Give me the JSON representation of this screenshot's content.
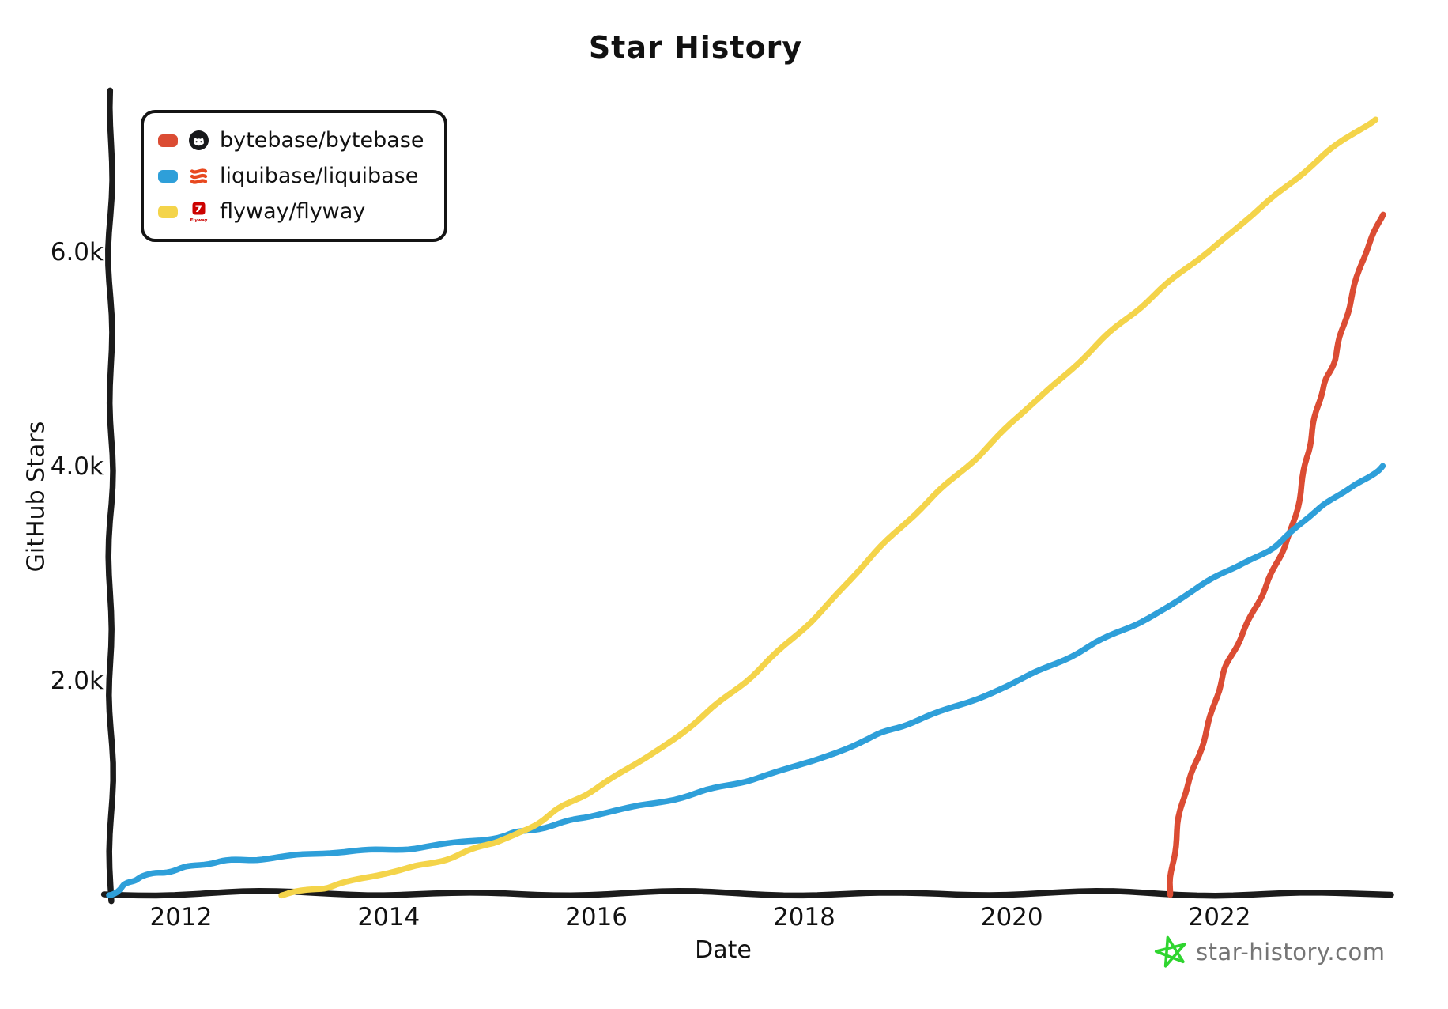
{
  "title": "Star History",
  "watermark": {
    "label": "star-history.com",
    "star_color": "#2FD52F",
    "text_color": "#757575"
  },
  "colors": {
    "axis": "#1b1b1b",
    "background": "#ffffff"
  },
  "chart_data": {
    "type": "line",
    "title": "Star History",
    "xlabel": "Date",
    "ylabel": "GitHub Stars",
    "grid": false,
    "legend_position": "top-left",
    "x_range": [
      2011.3,
      2023.85
    ],
    "y_range": [
      0,
      7500
    ],
    "x_ticks": [
      {
        "value": 2012,
        "label": "2012"
      },
      {
        "value": 2014,
        "label": "2014"
      },
      {
        "value": 2016,
        "label": "2016"
      },
      {
        "value": 2018,
        "label": "2018"
      },
      {
        "value": 2020,
        "label": "2020"
      },
      {
        "value": 2022,
        "label": "2022"
      }
    ],
    "y_ticks": [
      {
        "value": 2000,
        "label": "2.0k"
      },
      {
        "value": 4000,
        "label": "4.0k"
      },
      {
        "value": 6000,
        "label": "6.0k"
      }
    ],
    "series": [
      {
        "name": "bytebase/bytebase",
        "color": "#DB4C33",
        "icon": "bytebase-logo",
        "points": [
          [
            2021.52,
            0
          ],
          [
            2021.56,
            400
          ],
          [
            2021.65,
            900
          ],
          [
            2021.8,
            1300
          ],
          [
            2021.95,
            1800
          ],
          [
            2022.1,
            2200
          ],
          [
            2022.3,
            2600
          ],
          [
            2022.5,
            3000
          ],
          [
            2022.68,
            3370
          ],
          [
            2022.8,
            3900
          ],
          [
            2022.9,
            4350
          ],
          [
            2023.0,
            4750
          ],
          [
            2023.12,
            5050
          ],
          [
            2023.25,
            5500
          ],
          [
            2023.4,
            6000
          ],
          [
            2023.57,
            6350
          ]
        ]
      },
      {
        "name": "liquibase/liquibase",
        "color": "#2E9FD9",
        "icon": "liquibase-logo",
        "points": [
          [
            2011.32,
            0
          ],
          [
            2011.45,
            90
          ],
          [
            2011.6,
            160
          ],
          [
            2011.8,
            210
          ],
          [
            2012.0,
            250
          ],
          [
            2012.3,
            300
          ],
          [
            2012.6,
            330
          ],
          [
            2013.0,
            360
          ],
          [
            2013.5,
            400
          ],
          [
            2014.0,
            425
          ],
          [
            2014.5,
            470
          ],
          [
            2015.0,
            530
          ],
          [
            2015.3,
            600
          ],
          [
            2015.7,
            680
          ],
          [
            2016.0,
            750
          ],
          [
            2016.5,
            850
          ],
          [
            2017.0,
            960
          ],
          [
            2017.5,
            1080
          ],
          [
            2018.0,
            1230
          ],
          [
            2018.6,
            1450
          ],
          [
            2019.0,
            1600
          ],
          [
            2019.5,
            1780
          ],
          [
            2020.0,
            1970
          ],
          [
            2020.5,
            2200
          ],
          [
            2021.0,
            2450
          ],
          [
            2021.5,
            2680
          ],
          [
            2022.0,
            3000
          ],
          [
            2022.35,
            3150
          ],
          [
            2022.68,
            3370
          ],
          [
            2023.0,
            3650
          ],
          [
            2023.3,
            3820
          ],
          [
            2023.57,
            4000
          ]
        ]
      },
      {
        "name": "flyway/flyway",
        "color": "#F4D44A",
        "icon": "flyway-logo",
        "points": [
          [
            2012.96,
            0
          ],
          [
            2013.3,
            60
          ],
          [
            2013.6,
            120
          ],
          [
            2014.0,
            210
          ],
          [
            2014.4,
            300
          ],
          [
            2014.8,
            420
          ],
          [
            2015.1,
            520
          ],
          [
            2015.3,
            600
          ],
          [
            2015.6,
            780
          ],
          [
            2016.0,
            1000
          ],
          [
            2016.5,
            1300
          ],
          [
            2017.0,
            1650
          ],
          [
            2017.5,
            2050
          ],
          [
            2018.0,
            2500
          ],
          [
            2018.5,
            3000
          ],
          [
            2019.0,
            3500
          ],
          [
            2019.5,
            3950
          ],
          [
            2020.0,
            4400
          ],
          [
            2020.5,
            4850
          ],
          [
            2021.0,
            5300
          ],
          [
            2021.5,
            5700
          ],
          [
            2022.0,
            6100
          ],
          [
            2022.5,
            6500
          ],
          [
            2023.0,
            6900
          ],
          [
            2023.5,
            7250
          ]
        ]
      }
    ]
  }
}
